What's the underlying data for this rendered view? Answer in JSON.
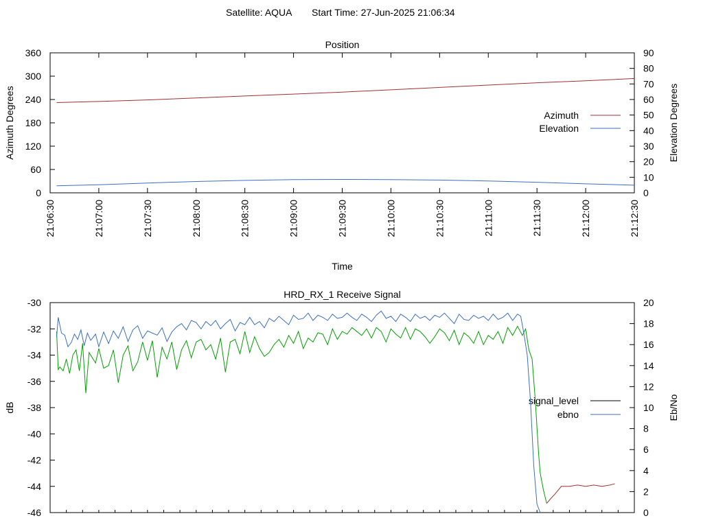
{
  "header": {
    "satellite": "Satellite: AQUA",
    "start_time": "Start Time: 27-Jun-2025 21:06:34"
  },
  "colors": {
    "azimuth": "#a03030",
    "elevation": "#3a6ec0",
    "signal_level": "#000000",
    "signal_level_plotted": [
      "#00a000",
      "#a03030"
    ],
    "ebno": "#3a6ec0",
    "axes": "#000000",
    "background": "#ffffff"
  },
  "chart_data": [
    {
      "type": "line",
      "title": "Position",
      "xlabel": "Time",
      "ylabel": "Azimuth Degrees",
      "y2label": "Elevation Degrees",
      "xlim": [
        "21:06:30",
        "21:12:30"
      ],
      "ylim": [
        0,
        360
      ],
      "y2lim": [
        0,
        90
      ],
      "xticks": [
        "21:06:30",
        "21:07:00",
        "21:07:30",
        "21:08:00",
        "21:08:30",
        "21:09:00",
        "21:09:30",
        "21:10:00",
        "21:10:30",
        "21:11:00",
        "21:11:30",
        "21:12:00",
        "21:12:30"
      ],
      "yticks": [
        "0",
        "60",
        "120",
        "180",
        "240",
        "300",
        "360"
      ],
      "y2ticks": [
        "0",
        "10",
        "20",
        "30",
        "40",
        "50",
        "60",
        "70",
        "80",
        "90"
      ],
      "legend_position": "right",
      "grid": false,
      "series": [
        {
          "name": "Azimuth",
          "axis": "y",
          "x": [
            "21:06:34",
            "21:07:00",
            "21:07:30",
            "21:08:00",
            "21:08:30",
            "21:09:00",
            "21:09:30",
            "21:10:00",
            "21:10:30",
            "21:11:00",
            "21:11:30",
            "21:12:00",
            "21:12:30"
          ],
          "values": [
            232,
            235,
            239,
            244,
            249,
            254,
            259,
            265,
            271,
            277,
            283,
            288,
            294
          ]
        },
        {
          "name": "Elevation",
          "axis": "y2",
          "x": [
            "21:06:34",
            "21:07:00",
            "21:07:30",
            "21:08:00",
            "21:08:30",
            "21:09:00",
            "21:09:30",
            "21:10:00",
            "21:10:30",
            "21:11:00",
            "21:11:30",
            "21:12:00",
            "21:12:30"
          ],
          "values": [
            4.5,
            5.2,
            6.3,
            7.3,
            8.0,
            8.5,
            8.6,
            8.5,
            8.2,
            7.6,
            6.8,
            5.8,
            4.9
          ]
        }
      ]
    },
    {
      "type": "line",
      "title": "HRD_RX_1 Receive Signal",
      "ylabel": "dB",
      "y2label": "Eb/No",
      "xlim": [
        "21:06:30",
        "21:12:30"
      ],
      "ylim": [
        -46,
        -30
      ],
      "y2lim": [
        0,
        20
      ],
      "yticks": [
        "-46",
        "-44",
        "-42",
        "-40",
        "-38",
        "-36",
        "-34",
        "-32",
        "-30"
      ],
      "y2ticks": [
        "0",
        "2",
        "4",
        "6",
        "8",
        "10",
        "12",
        "14",
        "16",
        "18",
        "20"
      ],
      "legend_position": "right",
      "grid": false,
      "series": [
        {
          "name": "signal_level",
          "axis": "y",
          "x": [
            "21:06:34",
            "21:06:35",
            "21:06:36",
            "21:06:38",
            "21:06:40",
            "21:06:42",
            "21:06:44",
            "21:06:46",
            "21:06:48",
            "21:06:50",
            "21:06:52",
            "21:06:54",
            "21:06:56",
            "21:06:58",
            "21:07:00",
            "21:07:03",
            "21:07:06",
            "21:07:09",
            "21:07:12",
            "21:07:15",
            "21:07:18",
            "21:07:21",
            "21:07:24",
            "21:07:27",
            "21:07:30",
            "21:07:33",
            "21:07:36",
            "21:07:39",
            "21:07:42",
            "21:07:45",
            "21:07:48",
            "21:07:51",
            "21:07:54",
            "21:07:57",
            "21:08:00",
            "21:08:03",
            "21:08:06",
            "21:08:09",
            "21:08:12",
            "21:08:15",
            "21:08:18",
            "21:08:21",
            "21:08:24",
            "21:08:27",
            "21:08:30",
            "21:08:33",
            "21:08:36",
            "21:08:39",
            "21:08:42",
            "21:08:45",
            "21:08:48",
            "21:08:51",
            "21:08:54",
            "21:08:57",
            "21:09:00",
            "21:09:03",
            "21:09:06",
            "21:09:09",
            "21:09:12",
            "21:09:15",
            "21:09:18",
            "21:09:21",
            "21:09:24",
            "21:09:27",
            "21:09:30",
            "21:09:33",
            "21:09:36",
            "21:09:39",
            "21:09:42",
            "21:09:45",
            "21:09:48",
            "21:09:51",
            "21:09:54",
            "21:09:57",
            "21:10:00",
            "21:10:03",
            "21:10:06",
            "21:10:09",
            "21:10:12",
            "21:10:15",
            "21:10:18",
            "21:10:21",
            "21:10:24",
            "21:10:27",
            "21:10:30",
            "21:10:33",
            "21:10:36",
            "21:10:39",
            "21:10:42",
            "21:10:45",
            "21:10:48",
            "21:10:51",
            "21:10:54",
            "21:10:57",
            "21:11:00",
            "21:11:03",
            "21:11:06",
            "21:11:09",
            "21:11:12",
            "21:11:15",
            "21:11:18",
            "21:11:21",
            "21:11:23",
            "21:11:25",
            "21:11:27",
            "21:11:29",
            "21:11:31",
            "21:11:32",
            "21:11:34",
            "21:11:36",
            "21:11:38",
            "21:11:41",
            "21:11:45",
            "21:11:50",
            "21:11:55",
            "21:12:00",
            "21:12:05",
            "21:12:10",
            "21:12:15",
            "21:12:18"
          ],
          "values": [
            -32.2,
            -35.1,
            -34.9,
            -35.2,
            -34.3,
            -35.4,
            -34.0,
            -33.6,
            -35.2,
            -33.1,
            -36.9,
            -33.8,
            -34.2,
            -34.6,
            -33.5,
            -35.0,
            -34.8,
            -33.6,
            -36.1,
            -34.0,
            -33.3,
            -35.2,
            -34.5,
            -33.0,
            -34.4,
            -32.9,
            -35.7,
            -33.4,
            -34.3,
            -33.0,
            -35.1,
            -33.6,
            -32.9,
            -34.2,
            -33.0,
            -32.8,
            -33.6,
            -33.2,
            -34.3,
            -32.7,
            -35.3,
            -33.0,
            -32.8,
            -33.9,
            -32.2,
            -33.8,
            -32.6,
            -33.5,
            -34.1,
            -33.8,
            -33.2,
            -32.8,
            -33.4,
            -32.5,
            -33.1,
            -32.2,
            -33.5,
            -32.7,
            -33.0,
            -32.3,
            -32.4,
            -33.2,
            -32.0,
            -32.8,
            -32.2,
            -32.4,
            -31.9,
            -32.2,
            -32.5,
            -32.0,
            -32.7,
            -31.9,
            -32.2,
            -33.0,
            -32.0,
            -32.4,
            -32.7,
            -31.9,
            -32.8,
            -32.0,
            -32.2,
            -32.6,
            -33.1,
            -32.6,
            -32.0,
            -32.3,
            -32.9,
            -32.1,
            -33.2,
            -32.3,
            -32.6,
            -33.1,
            -32.2,
            -33.2,
            -32.5,
            -32.8,
            -32.2,
            -33.1,
            -31.9,
            -32.5,
            -31.8,
            -32.5,
            -32.0,
            -33.6,
            -34.3,
            -37.5,
            -41.5,
            -43.0,
            -44.3,
            -45.3,
            -45.0,
            -44.6,
            -44.0,
            -44.0,
            -43.9,
            -44.0,
            -43.9,
            -44.0,
            -43.9,
            -43.8
          ]
        },
        {
          "name": "ebno",
          "axis": "y2",
          "x": [
            "21:06:34",
            "21:06:35",
            "21:06:37",
            "21:06:39",
            "21:06:41",
            "21:06:43",
            "21:06:45",
            "21:06:47",
            "21:06:49",
            "21:06:51",
            "21:06:53",
            "21:06:55",
            "21:06:58",
            "21:07:00",
            "21:07:03",
            "21:07:06",
            "21:07:09",
            "21:07:12",
            "21:07:15",
            "21:07:18",
            "21:07:21",
            "21:07:24",
            "21:07:27",
            "21:07:30",
            "21:07:33",
            "21:07:36",
            "21:07:39",
            "21:07:42",
            "21:07:45",
            "21:07:48",
            "21:07:51",
            "21:07:54",
            "21:07:57",
            "21:08:00",
            "21:08:03",
            "21:08:06",
            "21:08:09",
            "21:08:12",
            "21:08:15",
            "21:08:18",
            "21:08:21",
            "21:08:24",
            "21:08:27",
            "21:08:30",
            "21:08:33",
            "21:08:36",
            "21:08:39",
            "21:08:42",
            "21:08:45",
            "21:08:48",
            "21:08:51",
            "21:08:54",
            "21:08:57",
            "21:09:00",
            "21:09:03",
            "21:09:06",
            "21:09:09",
            "21:09:12",
            "21:09:15",
            "21:09:18",
            "21:09:21",
            "21:09:24",
            "21:09:27",
            "21:09:30",
            "21:09:33",
            "21:09:36",
            "21:09:39",
            "21:09:42",
            "21:09:45",
            "21:09:48",
            "21:09:51",
            "21:09:54",
            "21:09:57",
            "21:10:00",
            "21:10:03",
            "21:10:06",
            "21:10:09",
            "21:10:12",
            "21:10:15",
            "21:10:18",
            "21:10:21",
            "21:10:24",
            "21:10:27",
            "21:10:30",
            "21:10:33",
            "21:10:36",
            "21:10:39",
            "21:10:42",
            "21:10:45",
            "21:10:48",
            "21:10:51",
            "21:10:54",
            "21:10:57",
            "21:11:00",
            "21:11:03",
            "21:11:06",
            "21:11:09",
            "21:11:12",
            "21:11:15",
            "21:11:18",
            "21:11:20",
            "21:11:22",
            "21:11:24",
            "21:11:26",
            "21:11:28",
            "21:11:30",
            "21:11:32"
          ],
          "values": [
            16.7,
            18.6,
            17.1,
            16.9,
            15.8,
            16.2,
            17.0,
            16.5,
            17.4,
            15.9,
            17.1,
            16.4,
            17.0,
            15.8,
            17.2,
            16.1,
            17.3,
            16.6,
            17.7,
            16.3,
            17.4,
            17.8,
            16.6,
            17.3,
            17.1,
            16.9,
            17.6,
            16.3,
            17.2,
            17.7,
            18.0,
            17.4,
            18.3,
            18.1,
            17.5,
            18.2,
            17.8,
            18.3,
            17.5,
            18.0,
            18.4,
            17.3,
            18.1,
            17.9,
            18.6,
            17.9,
            18.2,
            17.6,
            18.5,
            18.2,
            18.7,
            18.3,
            17.9,
            18.8,
            18.4,
            18.5,
            19.0,
            18.3,
            18.8,
            18.6,
            18.3,
            18.9,
            18.5,
            18.6,
            19.0,
            18.6,
            18.3,
            18.9,
            18.6,
            18.2,
            18.8,
            19.2,
            18.5,
            18.7,
            18.2,
            18.9,
            18.6,
            18.2,
            18.9,
            18.5,
            18.7,
            18.3,
            18.8,
            18.6,
            19.0,
            18.5,
            18.0,
            18.9,
            18.4,
            18.3,
            18.8,
            18.5,
            18.7,
            18.3,
            18.9,
            18.4,
            18.6,
            19.0,
            18.3,
            18.9,
            18.7,
            17.0,
            15.0,
            10.6,
            4.5,
            0.8,
            0.0
          ]
        }
      ]
    }
  ]
}
